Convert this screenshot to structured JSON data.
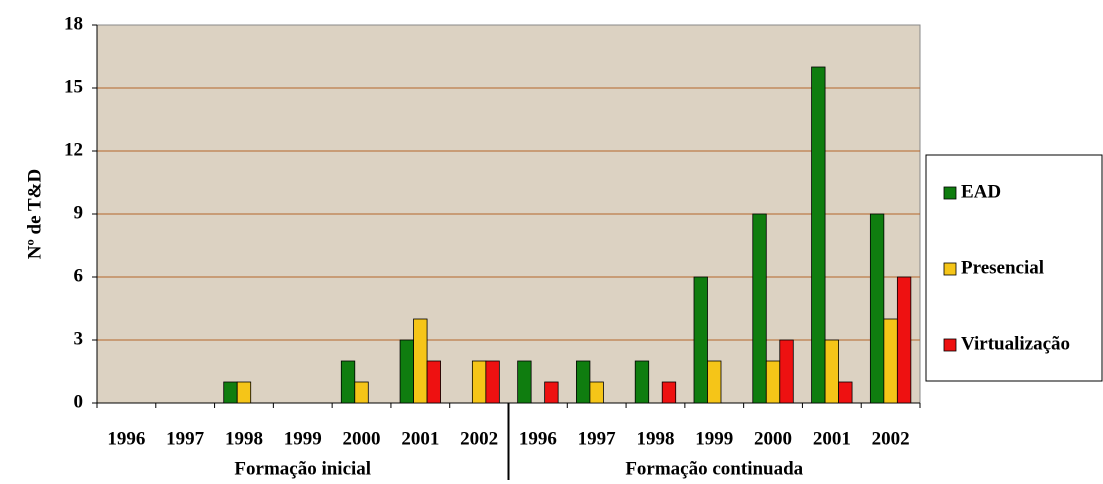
{
  "chart_data": {
    "type": "bar",
    "y_label": "Nº de T&D",
    "categories": [
      "1996",
      "1997",
      "1998",
      "1999",
      "2000",
      "2001",
      "2002",
      "1996",
      "1997",
      "1998",
      "1999",
      "2000",
      "2001",
      "2002"
    ],
    "group_labels": [
      "Formação inicial",
      "Formação continuada"
    ],
    "series": [
      {
        "name": "EAD",
        "color": "#0f7d0f",
        "values": [
          0,
          0,
          1,
          0,
          2,
          3,
          0,
          2,
          2,
          2,
          6,
          9,
          16,
          9
        ]
      },
      {
        "name": "Presencial",
        "color": "#f5c518",
        "values": [
          0,
          0,
          1,
          0,
          1,
          4,
          2,
          0,
          1,
          0,
          2,
          2,
          3,
          4
        ]
      },
      {
        "name": "Virtualização",
        "color": "#ee1111",
        "values": [
          0,
          0,
          0,
          0,
          0,
          2,
          2,
          1,
          0,
          1,
          0,
          3,
          1,
          6
        ]
      }
    ],
    "ylim": [
      0,
      18
    ],
    "yticks": [
      0,
      3,
      6,
      9,
      12,
      15,
      18
    ],
    "grid": true,
    "legend": "right"
  }
}
